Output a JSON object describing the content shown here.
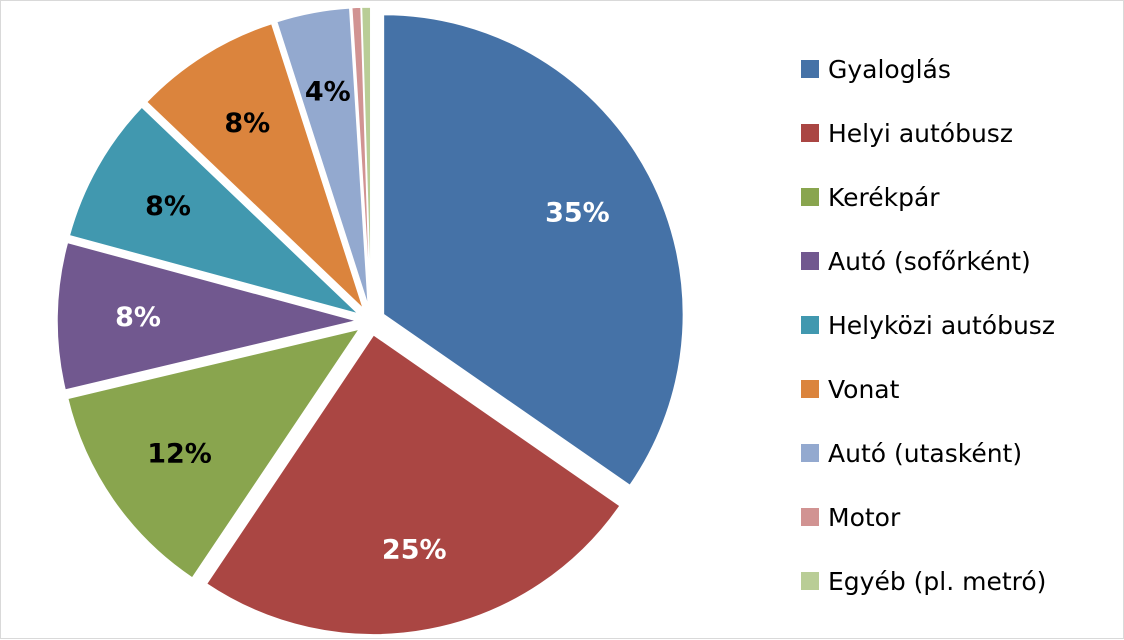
{
  "chart_data": {
    "type": "pie",
    "exploded": true,
    "start_angle_deg": 0,
    "direction": "clockwise",
    "slices": [
      {
        "name": "Gyaloglás",
        "value": 35,
        "label": "35%",
        "color": "#4572A7",
        "label_color": "#ffffff"
      },
      {
        "name": "Helyi autóbusz",
        "value": 25,
        "label": "25%",
        "color": "#AA4643",
        "label_color": "#ffffff"
      },
      {
        "name": "Kerékpár",
        "value": 12,
        "label": "12%",
        "color": "#89A54E",
        "label_color": "#000000"
      },
      {
        "name": "Autó (sofőrként)",
        "value": 8,
        "label": "8%",
        "color": "#71588F",
        "label_color": "#ffffff"
      },
      {
        "name": "Helyközi autóbusz",
        "value": 8,
        "label": "8%",
        "color": "#4198AF",
        "label_color": "#000000"
      },
      {
        "name": "Vonat",
        "value": 8,
        "label": "8%",
        "color": "#DB843D",
        "label_color": "#000000"
      },
      {
        "name": "Autó (utasként)",
        "value": 4,
        "label": "4%",
        "color": "#93A9CF",
        "label_color": "#000000"
      },
      {
        "name": "Motor",
        "value": 0.5,
        "label": "",
        "color": "#D19392",
        "label_color": "#000000"
      },
      {
        "name": "Egyéb (pl. metró)",
        "value": 0.5,
        "label": "",
        "color": "#B9CD96",
        "label_color": "#000000"
      }
    ],
    "legend": {
      "position": "right",
      "items": [
        {
          "label": "Gyaloglás",
          "color": "#4572A7"
        },
        {
          "label": "Helyi autóbusz",
          "color": "#AA4643"
        },
        {
          "label": "Kerékpár",
          "color": "#89A54E"
        },
        {
          "label": "Autó (sofőrként)",
          "color": "#71588F"
        },
        {
          "label": "Helyközi autóbusz",
          "color": "#4198AF"
        },
        {
          "label": "Vonat",
          "color": "#DB843D"
        },
        {
          "label": "Autó (utasként)",
          "color": "#93A9CF"
        },
        {
          "label": "Motor",
          "color": "#D19392"
        },
        {
          "label": "Egyéb (pl. metró)",
          "color": "#B9CD96"
        }
      ]
    }
  }
}
